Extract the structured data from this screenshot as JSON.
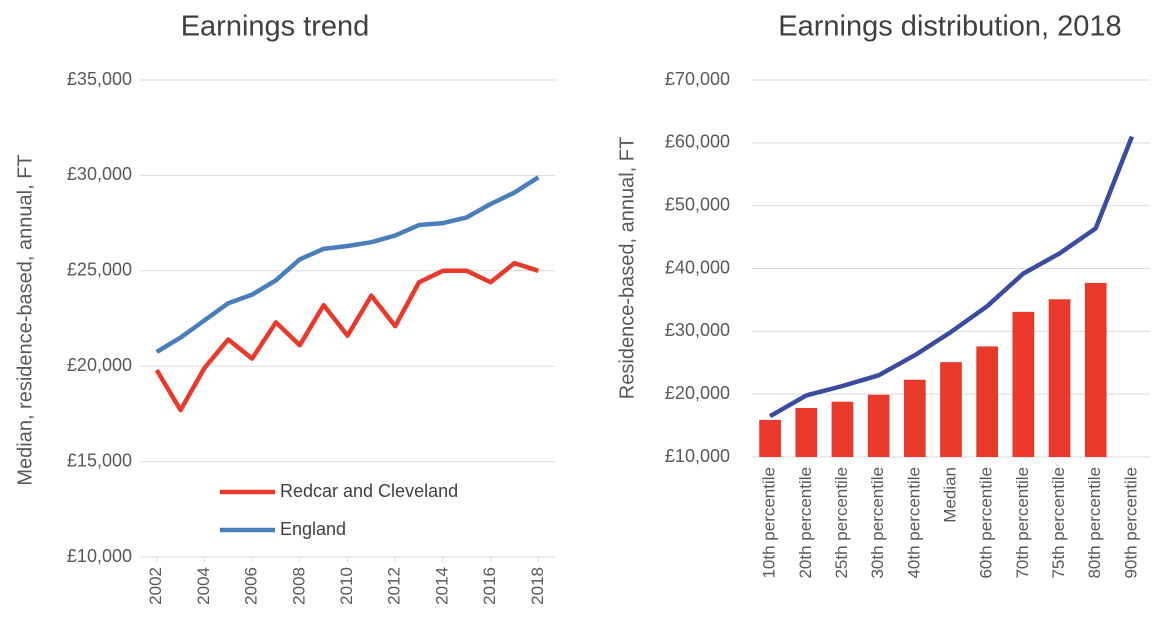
{
  "chart_data": [
    {
      "type": "line",
      "title": "Earnings trend",
      "ylabel": "Median, residence-based, annual, FT",
      "x": [
        2002,
        2003,
        2004,
        2005,
        2006,
        2007,
        2008,
        2009,
        2010,
        2011,
        2012,
        2013,
        2014,
        2015,
        2016,
        2017,
        2018
      ],
      "series": [
        {
          "name": "Redcar and Cleveland",
          "color": "#e8392a",
          "values": [
            19800,
            17700,
            19900,
            21400,
            20400,
            22300,
            21100,
            23200,
            21600,
            23700,
            22100,
            24400,
            25000,
            25000,
            24400,
            25400,
            25000
          ]
        },
        {
          "name": "England",
          "color": "#4a7ebb",
          "values": [
            20750,
            21500,
            22400,
            23300,
            23750,
            24500,
            25600,
            26150,
            26300,
            26500,
            26850,
            27400,
            27500,
            27800,
            28500,
            29100,
            29900
          ]
        }
      ],
      "xlim": [
        2001.3,
        2018.7
      ],
      "xticks": [
        2002,
        2004,
        2006,
        2008,
        2010,
        2012,
        2014,
        2016,
        2018
      ],
      "ylim": [
        10000,
        35000
      ],
      "yticks": [
        {
          "value": 10000,
          "label": "£10,000"
        },
        {
          "value": 15000,
          "label": "£15,000"
        },
        {
          "value": 20000,
          "label": "£20,000"
        },
        {
          "value": 25000,
          "label": "£25,000"
        },
        {
          "value": 30000,
          "label": "£30,000"
        },
        {
          "value": 35000,
          "label": "£35,000"
        }
      ],
      "grid": true,
      "legend": "bottom"
    },
    {
      "type": "bar",
      "title": "Earnings distribution, 2018",
      "ylabel": "Residence-based, annual, FT",
      "categories": [
        "10th percentile",
        "20th percentile",
        "25th percentile",
        "30th percentile",
        "40th percentile",
        "Median",
        "60th percentile",
        "70th percentile",
        "75th percentile",
        "80th percentile",
        "90th percentile"
      ],
      "series": [
        {
          "type": "bar",
          "color": "#e8392a",
          "values": [
            15900,
            17800,
            18800,
            19900,
            22300,
            25100,
            27600,
            33100,
            35100,
            37700,
            null
          ]
        },
        {
          "type": "line",
          "color": "#3b4ca0",
          "values": [
            16500,
            19800,
            21300,
            23000,
            26200,
            29900,
            34000,
            39200,
            42400,
            46400,
            61000
          ]
        }
      ],
      "ylim": [
        10000,
        70000
      ],
      "yticks": [
        {
          "value": 10000,
          "label": "£10,000"
        },
        {
          "value": 20000,
          "label": "£20,000"
        },
        {
          "value": 30000,
          "label": "£30,000"
        },
        {
          "value": 40000,
          "label": "£40,000"
        },
        {
          "value": 50000,
          "label": "£50,000"
        },
        {
          "value": 60000,
          "label": "£60,000"
        },
        {
          "value": 70000,
          "label": "£70,000"
        }
      ],
      "grid": true
    }
  ]
}
